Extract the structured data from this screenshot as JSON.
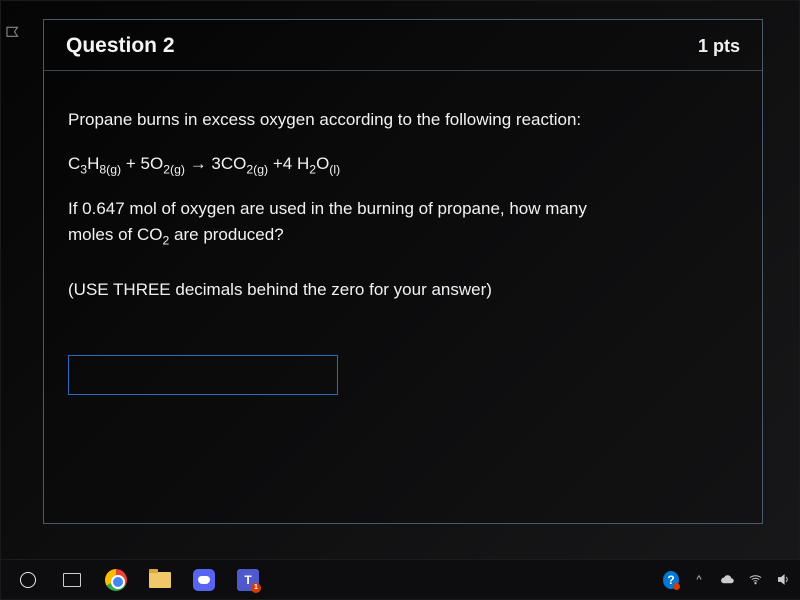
{
  "question": {
    "number_label": "Question 2",
    "points_label": "1 pts",
    "intro": "Propane burns in excess oxygen according to the following reaction:",
    "equation_html": "C<sub>3</sub>H<sub>8(g)</sub> + 5O<sub>2(g)</sub> → 3CO<sub>2(g)</sub> +4 H<sub>2</sub>O<sub>(l)</sub>",
    "prompt_line1": "If 0.647 mol of oxygen are used in the burning of propane, how many",
    "prompt_line2_html": "moles of CO<sub>2</sub> are produced?",
    "instruction": "(USE THREE decimals behind the zero for your answer)",
    "answer_value": ""
  },
  "taskbar": {
    "teams_badge": "1",
    "teams_letter": "T"
  },
  "colors": {
    "card_border": "#4a5a6a",
    "input_border": "#2a6abf",
    "text": "#f2f2f2",
    "background": "#0a0a0a"
  }
}
